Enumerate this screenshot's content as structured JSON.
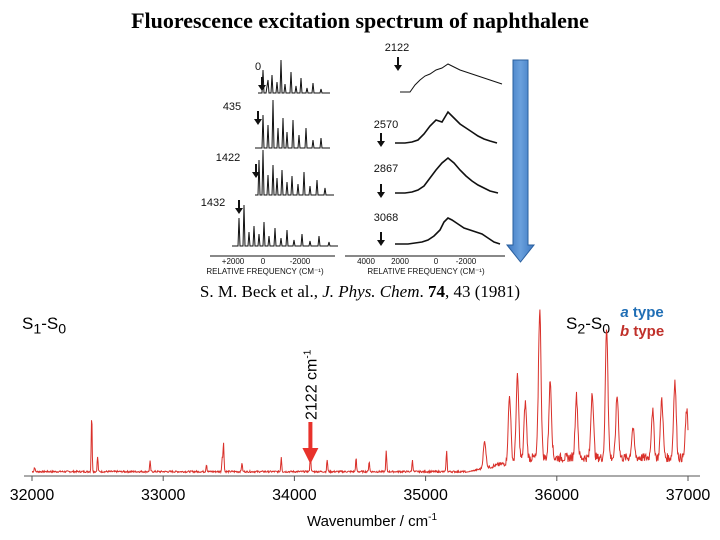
{
  "title": "Fluorescence excitation spectrum of naphthalene",
  "citation": {
    "authors": "S. M. Beck et al., ",
    "journal": "J. Phys. Chem",
    "dot": ". ",
    "volume": "74",
    "rest": ", 43 (1981)"
  },
  "inset": {
    "left_labels": [
      "0",
      "435",
      "1422",
      "1432"
    ],
    "right_labels": [
      "2122",
      "2570",
      "2867",
      "3068"
    ],
    "left_ticks": [
      "+2000",
      "0",
      "-2000"
    ],
    "right_ticks": [
      "4000",
      "2000",
      "0",
      "-2000"
    ],
    "axis_label": "RELATIVE FREQUENCY (CM⁻¹)"
  },
  "labels": {
    "s1": "S",
    "s1_sub": "1",
    "s1_dash": "-S",
    "s1_sub0": "0",
    "s2": "S",
    "s2_sub": "2",
    "s2_dash": "-S",
    "s2_sub0": "0",
    "marker": "2122 cm",
    "marker_sup": "-1"
  },
  "legend": {
    "a_letter": "a",
    "a_word": " type",
    "b_letter": "b",
    "b_word": " type"
  },
  "colors": {
    "trace": "#d9302a",
    "marker": "#e8322b",
    "arrow": "#4a86c8",
    "legend_a": "#1f6eb5",
    "legend_b": "#c0302a"
  },
  "chart_data": {
    "type": "line",
    "xlabel": "Wavenumber / cm",
    "xlabel_sup": "-1",
    "ylabel": "",
    "xlim": [
      32000,
      37000
    ],
    "xticks": [
      "32000",
      "33000",
      "34000",
      "35000",
      "36000",
      "37000"
    ],
    "marker_x": 34122,
    "peaks": [
      {
        "x": 32020,
        "y": 0.03
      },
      {
        "x": 32455,
        "y": 0.38
      },
      {
        "x": 32500,
        "y": 0.1
      },
      {
        "x": 32900,
        "y": 0.07
      },
      {
        "x": 33330,
        "y": 0.05
      },
      {
        "x": 33450,
        "y": 0.1
      },
      {
        "x": 33460,
        "y": 0.2
      },
      {
        "x": 33600,
        "y": 0.06
      },
      {
        "x": 33900,
        "y": 0.1
      },
      {
        "x": 34122,
        "y": 0.13
      },
      {
        "x": 34250,
        "y": 0.08
      },
      {
        "x": 34470,
        "y": 0.09
      },
      {
        "x": 34570,
        "y": 0.07
      },
      {
        "x": 34700,
        "y": 0.14
      },
      {
        "x": 34900,
        "y": 0.08
      },
      {
        "x": 35160,
        "y": 0.14
      },
      {
        "x": 35450,
        "y": 0.18
      },
      {
        "x": 35640,
        "y": 0.45
      },
      {
        "x": 35700,
        "y": 0.57
      },
      {
        "x": 35760,
        "y": 0.38
      },
      {
        "x": 35870,
        "y": 1.0
      },
      {
        "x": 35950,
        "y": 0.52
      },
      {
        "x": 36150,
        "y": 0.42
      },
      {
        "x": 36270,
        "y": 0.45
      },
      {
        "x": 36380,
        "y": 0.88
      },
      {
        "x": 36460,
        "y": 0.42
      },
      {
        "x": 36580,
        "y": 0.2
      },
      {
        "x": 36730,
        "y": 0.32
      },
      {
        "x": 36800,
        "y": 0.4
      },
      {
        "x": 36900,
        "y": 0.52
      },
      {
        "x": 36990,
        "y": 0.32
      }
    ]
  }
}
